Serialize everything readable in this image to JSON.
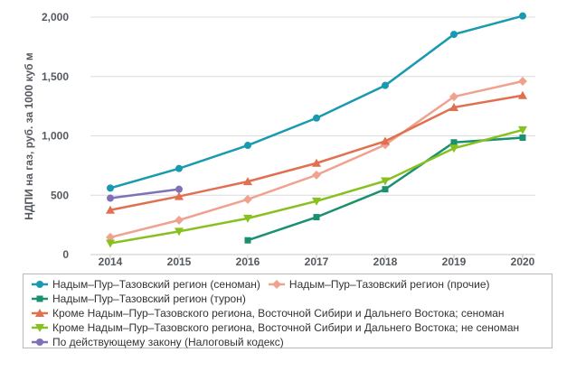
{
  "chart_data": {
    "type": "line",
    "title": "",
    "xlabel": "",
    "ylabel": "НДПИ на газ, руб. за 1000 куб м",
    "x": [
      2014,
      2015,
      2016,
      2017,
      2018,
      2019,
      2020
    ],
    "x_tick_labels": [
      "2014",
      "2015",
      "2016",
      "2017",
      "2018",
      "2019",
      "2020"
    ],
    "ylim": [
      0,
      2000
    ],
    "y_ticks": [
      0,
      500,
      1000,
      1500,
      2000
    ],
    "y_tick_labels": [
      "0",
      "500",
      "1,000",
      "1,500",
      "2,000"
    ],
    "grid": "horizontal",
    "legend_position": "bottom",
    "series": [
      {
        "name": "Надым–Пур–Тазовский регион (сеноман)",
        "color": "#1a9ab0",
        "marker": "circle",
        "values": [
          560,
          725,
          920,
          1150,
          1425,
          1855,
          2010
        ]
      },
      {
        "name": "Надым–Пур–Тазовский регион (прочие)",
        "color": "#f0a290",
        "marker": "diamond",
        "values": [
          145,
          290,
          465,
          670,
          925,
          1330,
          1460
        ]
      },
      {
        "name": "Надым–Пур–Тазовский регион (турон)",
        "color": "#1a9070",
        "marker": "square",
        "values": [
          null,
          null,
          120,
          315,
          550,
          945,
          985
        ]
      },
      {
        "name": "Кроме Надым–Пур–Тазовского региона, Восточной Сибири и Дальнего Востока; сеноман",
        "color": "#e07050",
        "marker": "triangle-up",
        "values": [
          375,
          490,
          615,
          770,
          955,
          1240,
          1340
        ]
      },
      {
        "name": "Кроме Надым–Пур–Тазовского региона, Восточной Сибири и Дальнего Востока; не сеноман",
        "color": "#88c020",
        "marker": "triangle-down",
        "values": [
          95,
          195,
          305,
          450,
          620,
          895,
          1050
        ]
      },
      {
        "name": "По действующему закону (Налоговый кодекс)",
        "color": "#8070b8",
        "marker": "circle",
        "values": [
          475,
          550,
          null,
          null,
          null,
          null,
          null
        ]
      }
    ]
  }
}
